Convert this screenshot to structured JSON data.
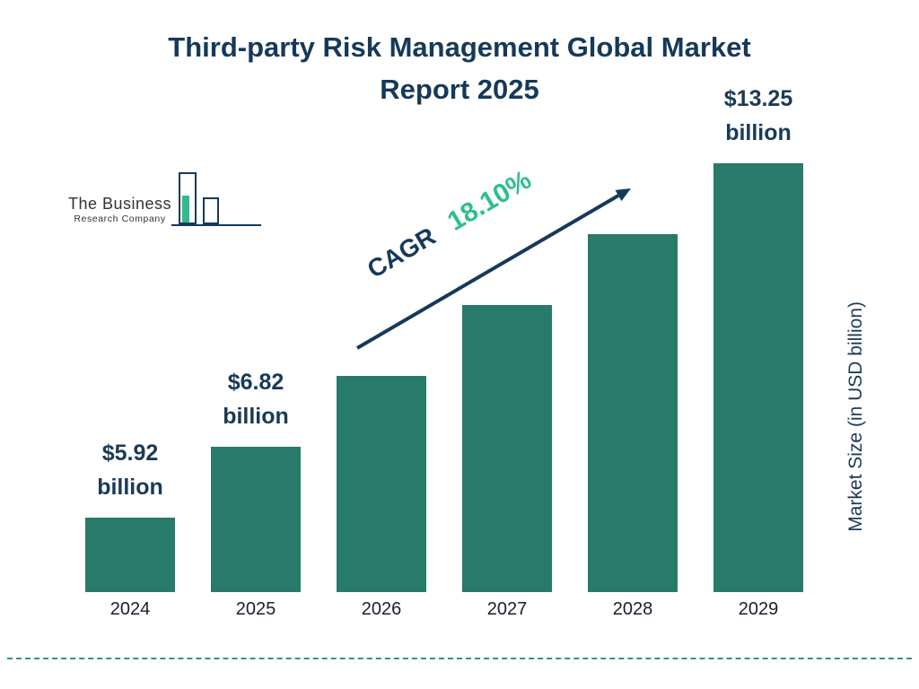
{
  "title": {
    "line1": "Third-party Risk Management Global Market",
    "line2": "Report 2025"
  },
  "logo": {
    "line1": "The Business",
    "line2": "Research Company"
  },
  "cagr": {
    "label": "CAGR",
    "value": "18.10%"
  },
  "y_axis_label": "Market Size (in USD billion)",
  "colors": {
    "bar": "#287a6b",
    "navy": "#16395a",
    "green": "#2fbe8e",
    "dashed_line": "#2f9583"
  },
  "chart_data": {
    "type": "bar",
    "title": "Third-party Risk Management Global Market Report 2025",
    "categories": [
      "2024",
      "2025",
      "2026",
      "2027",
      "2028",
      "2029"
    ],
    "values": [
      5.92,
      6.82,
      8.05,
      9.51,
      11.23,
      13.25
    ],
    "ylabel": "Market Size (in USD billion)",
    "cagr_percent": 18.1,
    "grid": false,
    "legend": "none",
    "bars": [
      {
        "year": "2024",
        "value": 5.92,
        "label_line1": "$5.92",
        "label_line2": "billion"
      },
      {
        "year": "2025",
        "value": 6.82,
        "label_line1": "$6.82",
        "label_line2": "billion"
      },
      {
        "year": "2026",
        "value": 8.05,
        "label_line1": null,
        "label_line2": null
      },
      {
        "year": "2027",
        "value": 9.51,
        "label_line1": null,
        "label_line2": null
      },
      {
        "year": "2028",
        "value": 11.23,
        "label_line1": null,
        "label_line2": null
      },
      {
        "year": "2029",
        "value": 13.25,
        "label_line1": "$13.25",
        "label_line2": "billion"
      }
    ]
  }
}
